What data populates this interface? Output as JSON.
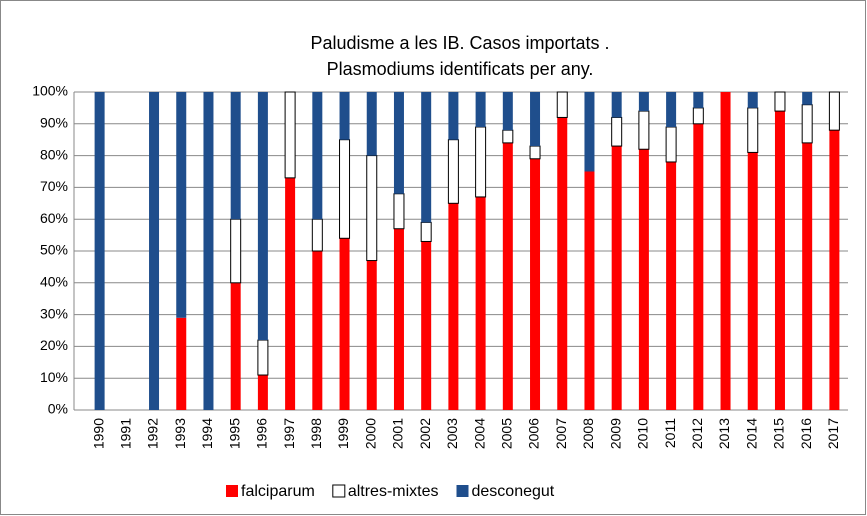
{
  "chart_data": {
    "type": "stacked_bar",
    "title": [
      "Paludisme a les IB. Casos importats .",
      "Plasmodiums identificats per any."
    ],
    "categories": [
      "1990",
      "1991",
      "1992",
      "1993",
      "1994",
      "1995",
      "1996",
      "1997",
      "1998",
      "1999",
      "2000",
      "2001",
      "2002",
      "2003",
      "2004",
      "2005",
      "2006",
      "2007",
      "2008",
      "2009",
      "2010",
      "2011",
      "2012",
      "2013",
      "2014",
      "2015",
      "2016",
      "2017"
    ],
    "series": [
      {
        "name": "falciparum",
        "color": "#ff0000",
        "values": [
          0,
          0,
          0,
          29,
          0,
          40,
          11,
          73,
          50,
          54,
          47,
          57,
          53,
          65,
          67,
          84,
          79,
          92,
          75,
          83,
          82,
          78,
          90,
          100,
          81,
          94,
          84,
          88
        ]
      },
      {
        "name": "altres-mixtes",
        "color": "#ffffff",
        "values": [
          0,
          0,
          0,
          0,
          0,
          20,
          11,
          27,
          10,
          31,
          33,
          11,
          6,
          20,
          22,
          4,
          4,
          8,
          0,
          9,
          12,
          11,
          5,
          0,
          14,
          6,
          12,
          12
        ]
      },
      {
        "name": "desconegut",
        "color": "#1f4e8c",
        "values": [
          100,
          0,
          100,
          71,
          100,
          40,
          78,
          0,
          40,
          15,
          20,
          32,
          41,
          15,
          11,
          12,
          17,
          0,
          25,
          8,
          6,
          11,
          5,
          0,
          5,
          0,
          4,
          0
        ]
      }
    ],
    "ylim": [
      0,
      100
    ],
    "yticks": [
      {
        "value": 0,
        "label": "0%"
      },
      {
        "value": 10,
        "label": "10%"
      },
      {
        "value": 20,
        "label": "20%"
      },
      {
        "value": 30,
        "label": "30%"
      },
      {
        "value": 40,
        "label": "40%"
      },
      {
        "value": 50,
        "label": "50%"
      },
      {
        "value": 60,
        "label": "60%"
      },
      {
        "value": 70,
        "label": "70%"
      },
      {
        "value": 80,
        "label": "80%"
      },
      {
        "value": 90,
        "label": "90%"
      },
      {
        "value": 100,
        "label": "100%"
      }
    ],
    "grid": true,
    "legend": "bottom"
  }
}
